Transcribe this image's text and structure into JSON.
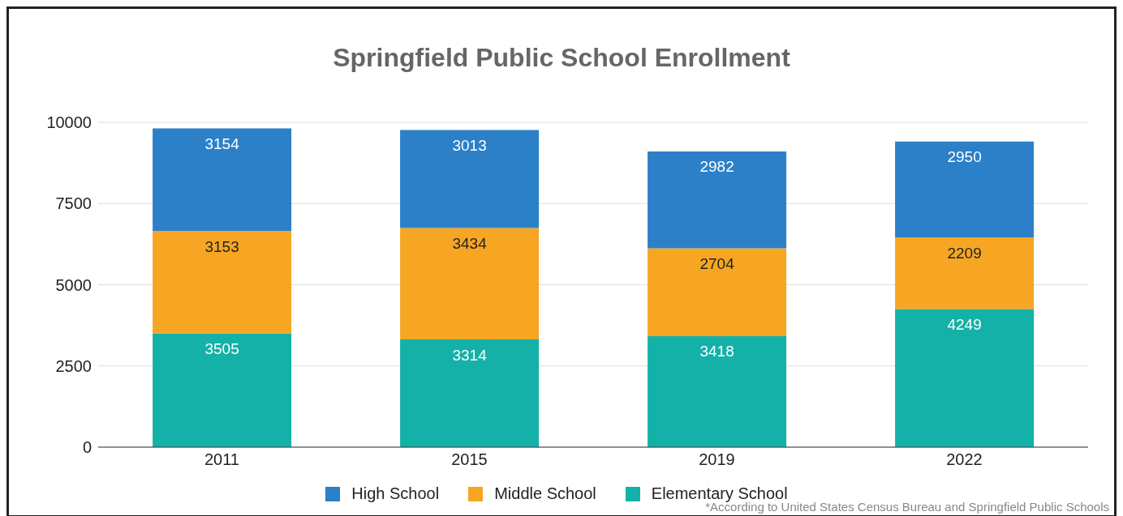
{
  "chart_data": {
    "type": "bar",
    "title": "Springfield Public School Enrollment",
    "categories": [
      "2011",
      "2015",
      "2019",
      "2022"
    ],
    "series": [
      {
        "name": "Elementary School",
        "color": "#14b1a8",
        "values": [
          3505,
          3314,
          3418,
          4249
        ]
      },
      {
        "name": "Middle School",
        "color": "#f6a623",
        "values": [
          3153,
          3434,
          2704,
          2209
        ]
      },
      {
        "name": "High School",
        "color": "#2b80c8",
        "values": [
          3154,
          3013,
          2982,
          2950
        ]
      }
    ],
    "stacked": true,
    "ylim": [
      0,
      10000
    ],
    "yticks": [
      0,
      2500,
      5000,
      7500,
      10000
    ],
    "grid": "y",
    "legend": "bottom",
    "data_labels": true,
    "annotations": [
      "*According to United States Census Bureau and Springfield Public Schools"
    ]
  }
}
